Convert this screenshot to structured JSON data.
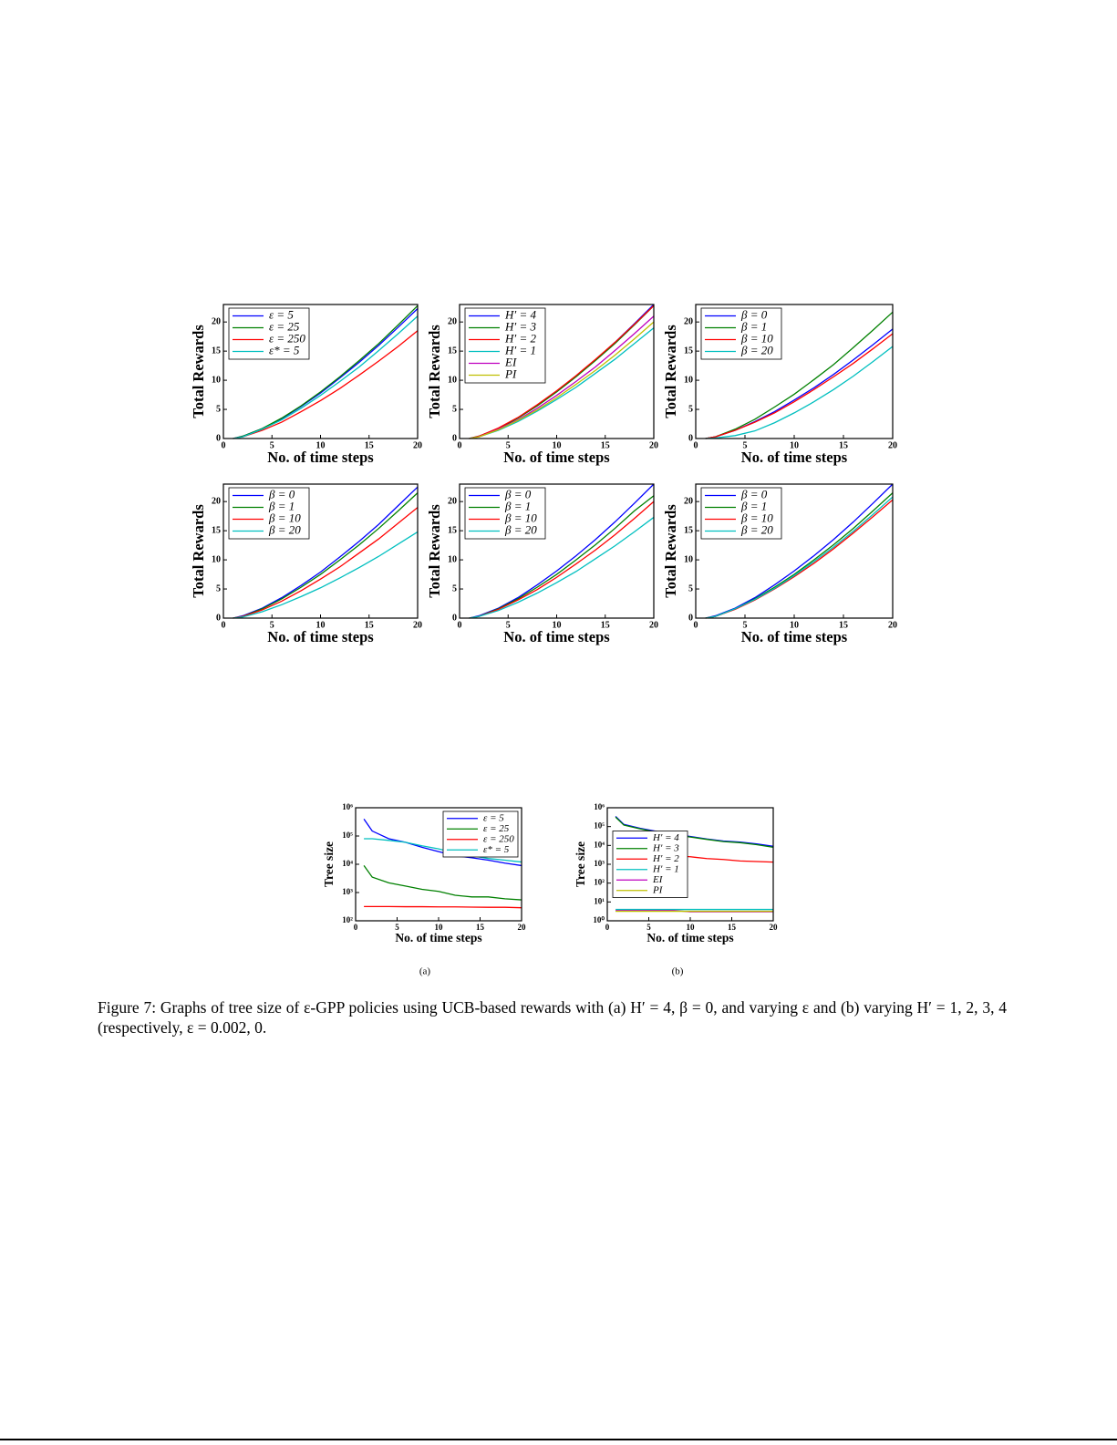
{
  "chart_data": [
    {
      "type": "line",
      "ylabel": "Total Rewards",
      "xlabel": "No. of time steps",
      "xlim": [
        0,
        20
      ],
      "ylim": [
        0,
        23
      ],
      "xticks": [
        0,
        5,
        10,
        15,
        20
      ],
      "yticks": [
        0,
        5,
        10,
        15,
        20
      ],
      "legend": "upper left",
      "x": [
        1,
        2,
        4,
        6,
        8,
        10,
        12,
        14,
        16,
        18,
        20
      ],
      "series": [
        {
          "name": "ε = 5",
          "color": "#0000ff",
          "values": [
            0,
            0.4,
            1.7,
            3.4,
            5.5,
            7.8,
            10.4,
            13.1,
            16.0,
            19.1,
            22.3
          ]
        },
        {
          "name": "ε = 25",
          "color": "#008000",
          "values": [
            0,
            0.4,
            1.7,
            3.5,
            5.6,
            8.0,
            10.6,
            13.4,
            16.3,
            19.5,
            22.8
          ]
        },
        {
          "name": "ε = 250",
          "color": "#ff0000",
          "values": [
            0,
            0.3,
            1.4,
            2.8,
            4.6,
            6.5,
            8.6,
            10.9,
            13.3,
            15.8,
            18.5
          ]
        },
        {
          "name": "ε* = 5",
          "color": "#00bfbf",
          "values": [
            0,
            0.3,
            1.6,
            3.2,
            5.2,
            7.4,
            9.8,
            12.3,
            15.1,
            18.0,
            21.0
          ]
        }
      ]
    },
    {
      "type": "line",
      "ylabel": "Total Rewards",
      "xlabel": "No. of time steps",
      "xlim": [
        0,
        20
      ],
      "ylim": [
        0,
        23
      ],
      "xticks": [
        0,
        5,
        10,
        15,
        20
      ],
      "yticks": [
        0,
        5,
        10,
        15,
        20
      ],
      "legend": "upper left",
      "x": [
        1,
        2,
        4,
        6,
        8,
        10,
        12,
        14,
        16,
        18,
        20
      ],
      "series": [
        {
          "name": "H′ = 4",
          "color": "#0000ff",
          "values": [
            0,
            0.4,
            1.7,
            3.5,
            5.7,
            8.1,
            10.7,
            13.5,
            16.5,
            19.7,
            23.0
          ]
        },
        {
          "name": "H′ = 3",
          "color": "#008000",
          "values": [
            0,
            0.4,
            1.7,
            3.5,
            5.6,
            8.0,
            10.6,
            13.4,
            16.3,
            19.5,
            22.8
          ]
        },
        {
          "name": "H′ = 2",
          "color": "#ff0000",
          "values": [
            0,
            0.4,
            1.8,
            3.6,
            5.8,
            8.2,
            10.8,
            13.6,
            16.5,
            19.6,
            22.8
          ]
        },
        {
          "name": "H′ = 1",
          "color": "#00bfbf",
          "values": [
            0,
            0.3,
            1.4,
            2.9,
            4.7,
            6.7,
            8.8,
            11.2,
            13.6,
            16.3,
            19.0
          ]
        },
        {
          "name": "EI",
          "color": "#bf00bf",
          "values": [
            0,
            0.3,
            1.6,
            3.2,
            5.2,
            7.4,
            9.8,
            12.3,
            15.1,
            18.0,
            21.0
          ]
        },
        {
          "name": "PI",
          "color": "#bfbf00",
          "values": [
            0,
            0.3,
            1.5,
            3.1,
            4.9,
            7.0,
            9.3,
            11.7,
            14.3,
            17.1,
            20.0
          ]
        }
      ]
    },
    {
      "type": "line",
      "ylabel": "Total Rewards",
      "xlabel": "No. of time steps",
      "xlim": [
        0,
        20
      ],
      "ylim": [
        0,
        23
      ],
      "xticks": [
        0,
        5,
        10,
        15,
        20
      ],
      "yticks": [
        0,
        5,
        10,
        15,
        20
      ],
      "legend": "upper left",
      "x": [
        1,
        2,
        4,
        6,
        8,
        10,
        12,
        14,
        16,
        18,
        20
      ],
      "series": [
        {
          "name": "β = 0",
          "color": "#0000ff",
          "values": [
            0,
            0.3,
            1.4,
            2.9,
            4.6,
            6.6,
            8.7,
            11.0,
            13.5,
            16.1,
            18.8
          ]
        },
        {
          "name": "β = 1",
          "color": "#008000",
          "values": [
            0,
            0.3,
            1.6,
            3.3,
            5.4,
            7.6,
            10.1,
            12.7,
            15.6,
            18.6,
            21.7
          ]
        },
        {
          "name": "β = 10",
          "color": "#ff0000",
          "values": [
            0,
            0.3,
            1.4,
            2.8,
            4.4,
            6.3,
            8.4,
            10.6,
            12.9,
            15.4,
            18.0
          ]
        },
        {
          "name": "β = 20",
          "color": "#00bfbf",
          "values": [
            0,
            0.1,
            0.5,
            1.3,
            2.7,
            4.4,
            6.3,
            8.4,
            10.7,
            13.2,
            15.8
          ]
        }
      ]
    },
    {
      "type": "line",
      "ylabel": "Total Rewards",
      "xlabel": "No. of time steps",
      "xlim": [
        0,
        20
      ],
      "ylim": [
        0,
        23
      ],
      "xticks": [
        0,
        5,
        10,
        15,
        20
      ],
      "yticks": [
        0,
        5,
        10,
        15,
        20
      ],
      "legend": "upper left",
      "x": [
        1,
        2,
        4,
        6,
        8,
        10,
        12,
        14,
        16,
        18,
        20
      ],
      "series": [
        {
          "name": "β = 0",
          "color": "#0000ff",
          "values": [
            0,
            0.4,
            1.7,
            3.5,
            5.6,
            7.9,
            10.5,
            13.2,
            16.1,
            19.3,
            22.5
          ]
        },
        {
          "name": "β = 1",
          "color": "#008000",
          "values": [
            0,
            0.3,
            1.6,
            3.3,
            5.3,
            7.5,
            10.0,
            12.6,
            15.4,
            18.4,
            21.5
          ]
        },
        {
          "name": "β = 10",
          "color": "#ff0000",
          "values": [
            0,
            0.3,
            1.4,
            2.9,
            4.7,
            6.7,
            8.8,
            11.2,
            13.6,
            16.3,
            19.0
          ]
        },
        {
          "name": "β = 20",
          "color": "#00bfbf",
          "values": [
            0,
            0.2,
            1.1,
            2.3,
            3.7,
            5.2,
            6.9,
            8.7,
            10.6,
            12.7,
            14.8
          ]
        }
      ]
    },
    {
      "type": "line",
      "ylabel": "Total Rewards",
      "xlabel": "No. of time steps",
      "xlim": [
        0,
        20
      ],
      "ylim": [
        0,
        23
      ],
      "xticks": [
        0,
        5,
        10,
        15,
        20
      ],
      "yticks": [
        0,
        5,
        10,
        15,
        20
      ],
      "legend": "upper left",
      "x": [
        1,
        2,
        4,
        6,
        8,
        10,
        12,
        14,
        16,
        18,
        20
      ],
      "series": [
        {
          "name": "β = 0",
          "color": "#0000ff",
          "values": [
            0,
            0.4,
            1.7,
            3.5,
            5.7,
            8.1,
            10.7,
            13.5,
            16.5,
            19.7,
            23.0
          ]
        },
        {
          "name": "β = 1",
          "color": "#008000",
          "values": [
            0,
            0.3,
            1.6,
            3.3,
            5.3,
            7.5,
            10.0,
            12.6,
            15.4,
            18.4,
            21.0
          ]
        },
        {
          "name": "β = 10",
          "color": "#ff0000",
          "values": [
            0,
            0.3,
            1.5,
            3.1,
            4.9,
            7.0,
            9.3,
            11.7,
            14.3,
            17.1,
            20.0
          ]
        },
        {
          "name": "β = 20",
          "color": "#00bfbf",
          "values": [
            0,
            0.3,
            1.3,
            2.7,
            4.3,
            6.1,
            8.0,
            10.2,
            12.4,
            14.8,
            17.3
          ]
        }
      ]
    },
    {
      "type": "line",
      "ylabel": "Total Rewards",
      "xlabel": "No. of time steps",
      "xlim": [
        0,
        20
      ],
      "ylim": [
        0,
        23
      ],
      "xticks": [
        0,
        5,
        10,
        15,
        20
      ],
      "yticks": [
        0,
        5,
        10,
        15,
        20
      ],
      "legend": "upper left",
      "x": [
        1,
        2,
        4,
        6,
        8,
        10,
        12,
        14,
        16,
        18,
        20
      ],
      "series": [
        {
          "name": "β = 0",
          "color": "#0000ff",
          "values": [
            0,
            0.4,
            1.7,
            3.5,
            5.7,
            8.1,
            10.7,
            13.5,
            16.5,
            19.7,
            23.0
          ]
        },
        {
          "name": "β = 1",
          "color": "#008000",
          "values": [
            0,
            0.3,
            1.6,
            3.3,
            5.3,
            7.5,
            10.0,
            12.6,
            15.4,
            18.4,
            21.5
          ]
        },
        {
          "name": "β = 10",
          "color": "#ff0000",
          "values": [
            0,
            0.3,
            1.5,
            3.1,
            5.0,
            7.1,
            9.4,
            11.9,
            14.6,
            17.4,
            20.3
          ]
        },
        {
          "name": "β = 20",
          "color": "#00bfbf",
          "values": [
            0,
            0.3,
            1.6,
            3.2,
            5.1,
            7.3,
            9.7,
            12.2,
            14.9,
            17.8,
            20.8
          ]
        }
      ]
    },
    {
      "type": "line",
      "log": true,
      "ylabel": "Tree size",
      "xlabel": "No. of time steps",
      "xlim": [
        0,
        20
      ],
      "ylim": [
        100,
        1000000
      ],
      "xticks": [
        0,
        5,
        10,
        15,
        20
      ],
      "yticks": [
        {
          "value": 100,
          "label": "10²"
        },
        {
          "value": 1000,
          "label": "10³"
        },
        {
          "value": 10000,
          "label": "10⁴"
        },
        {
          "value": 100000,
          "label": "10⁵"
        },
        {
          "value": 1000000,
          "label": "10⁶"
        }
      ],
      "legend": "upper right",
      "x": [
        1,
        2,
        4,
        6,
        8,
        10,
        12,
        14,
        16,
        18,
        20
      ],
      "series": [
        {
          "name": "ε = 5",
          "color": "#0000ff",
          "values": [
            400000,
            150000,
            80000,
            60000,
            40000,
            28000,
            20000,
            17000,
            14000,
            11000,
            9000
          ]
        },
        {
          "name": "ε = 25",
          "color": "#008000",
          "values": [
            9000,
            3500,
            2200,
            1700,
            1300,
            1100,
            800,
            700,
            700,
            600,
            550
          ]
        },
        {
          "name": "ε = 250",
          "color": "#ff0000",
          "values": [
            320,
            320,
            320,
            315,
            315,
            310,
            310,
            305,
            300,
            300,
            290
          ]
        },
        {
          "name": "ε* = 5",
          "color": "#00bfbf",
          "values": [
            80000,
            80000,
            70000,
            60000,
            45000,
            35000,
            25000,
            20000,
            16000,
            14000,
            12000
          ]
        }
      ]
    },
    {
      "type": "line",
      "log": true,
      "ylabel": "Tree size",
      "xlabel": "No. of time steps",
      "xlim": [
        0,
        20
      ],
      "ylim": [
        1,
        1000000
      ],
      "xticks": [
        0,
        5,
        10,
        15,
        20
      ],
      "yticks": [
        {
          "value": 1,
          "label": "10⁰"
        },
        {
          "value": 10,
          "label": "10¹"
        },
        {
          "value": 100,
          "label": "10²"
        },
        {
          "value": 1000,
          "label": "10³"
        },
        {
          "value": 10000,
          "label": "10⁴"
        },
        {
          "value": 100000,
          "label": "10⁵"
        },
        {
          "value": 1000000,
          "label": "10⁶"
        }
      ],
      "legend": "center left",
      "x": [
        1,
        2,
        4,
        6,
        8,
        10,
        12,
        14,
        16,
        18,
        20
      ],
      "series": [
        {
          "name": "H′ = 4",
          "color": "#0000ff",
          "values": [
            350000,
            130000,
            80000,
            55000,
            40000,
            30000,
            22000,
            17000,
            15000,
            12000,
            9000
          ]
        },
        {
          "name": "H′ = 3",
          "color": "#008000",
          "values": [
            320000,
            120000,
            75000,
            50000,
            38000,
            28000,
            21000,
            16000,
            14000,
            11000,
            8000
          ]
        },
        {
          "name": "H′ = 2",
          "color": "#ff0000",
          "values": [
            3500,
            3200,
            3000,
            3000,
            2800,
            2500,
            2000,
            1800,
            1500,
            1400,
            1300
          ]
        },
        {
          "name": "H′ = 1",
          "color": "#00bfbf",
          "values": [
            4,
            4,
            4,
            4,
            4,
            4,
            4,
            4,
            4,
            4,
            4
          ]
        },
        {
          "name": "EI",
          "color": "#bf00bf",
          "values": [
            3.5,
            3.5,
            3.5,
            3.5,
            3.5,
            3,
            3,
            3,
            3,
            3,
            3
          ]
        },
        {
          "name": "PI",
          "color": "#bfbf00",
          "values": [
            3.2,
            3.2,
            3.2,
            3.2,
            3.2,
            3.2,
            3.2,
            3.2,
            3.2,
            3.2,
            3.2
          ]
        }
      ]
    }
  ],
  "figure": {
    "subfigures": [
      "(a)",
      "(b)"
    ],
    "caption": "Figure 7: Graphs of tree size of ε-GPP policies using UCB-based rewards with (a) H′ = 4, β = 0, and varying ε and (b) varying H′ = 1, 2, 3, 4 (respectively, ε = 0.002, 0."
  }
}
